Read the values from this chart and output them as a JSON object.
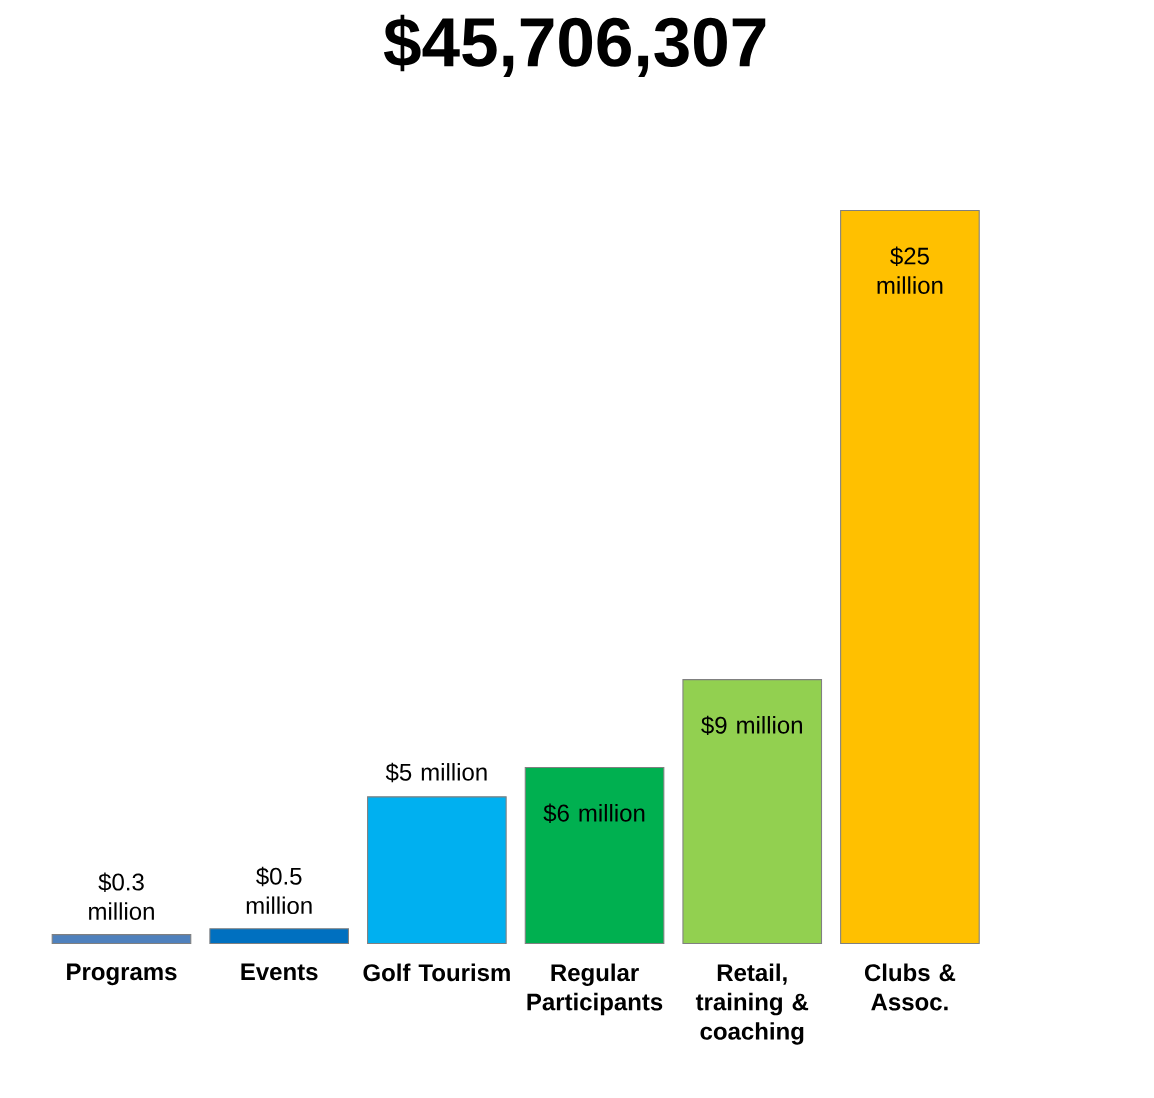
{
  "chart_data": {
    "type": "bar",
    "title": "$45,706,307",
    "categories": [
      "Programs",
      "Events",
      "Golf Tourism",
      "Regular Participants",
      "Retail, training & coaching",
      "Clubs & Assoc."
    ],
    "values": [
      0.3,
      0.5,
      5,
      6,
      9,
      25
    ],
    "value_labels": [
      "$0.3 million",
      "$0.5 million",
      "$5 million",
      "$6 million",
      "$9 million",
      "$25 million"
    ],
    "colors": [
      "#4f81bd",
      "#0070c0",
      "#00b0f0",
      "#00b050",
      "#92d050",
      "#ffc000"
    ]
  }
}
